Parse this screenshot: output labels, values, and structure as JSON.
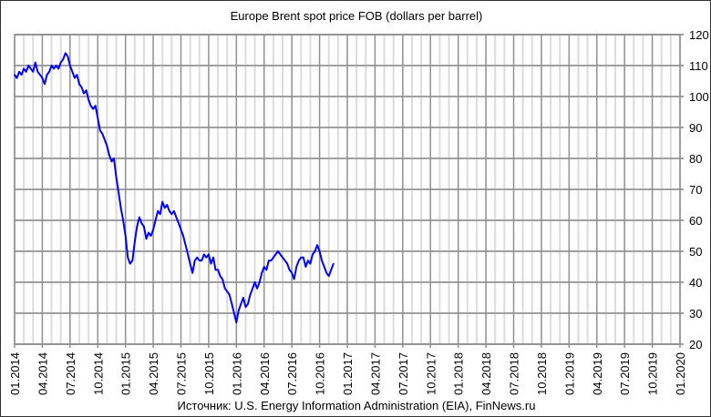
{
  "chart_data": {
    "type": "line",
    "title": "Europe Brent spot price FOB (dollars per barrel)",
    "source": "Источник: U.S. Energy Information Administration (EIA), FinNews.ru",
    "xlabel": "",
    "ylabel": "",
    "x_unit": "months since 01.2014",
    "xlim": [
      0,
      72
    ],
    "ylim": [
      20,
      120
    ],
    "y_ticks": [
      20,
      30,
      40,
      50,
      60,
      70,
      80,
      90,
      100,
      110,
      120
    ],
    "x_tick_labels": [
      "01.2014",
      "04.2014",
      "07.2014",
      "10.2014",
      "01.2015",
      "04.2015",
      "07.2015",
      "10.2015",
      "01.2016",
      "04.2016",
      "07.2016",
      "10.2016",
      "01.2017",
      "04.2017",
      "07.2017",
      "10.2017",
      "01.2018",
      "04.2018",
      "07.2018",
      "10.2018",
      "01.2019",
      "04.2019",
      "07.2019",
      "10.2019",
      "01.2020"
    ],
    "grid": true,
    "y_axis_side": "right",
    "series": [
      {
        "name": "Brent",
        "color": "#0000ff",
        "x": [
          0,
          0.25,
          0.5,
          0.75,
          1,
          1.25,
          1.5,
          1.75,
          2,
          2.25,
          2.5,
          2.75,
          3,
          3.25,
          3.5,
          3.75,
          4,
          4.25,
          4.5,
          4.75,
          5,
          5.25,
          5.5,
          5.75,
          6,
          6.25,
          6.5,
          6.75,
          7,
          7.25,
          7.5,
          7.75,
          8,
          8.25,
          8.5,
          8.75,
          9,
          9.25,
          9.5,
          9.75,
          10,
          10.25,
          10.5,
          10.75,
          11,
          11.25,
          11.5,
          11.75,
          12,
          12.25,
          12.5,
          12.75,
          13,
          13.25,
          13.5,
          13.75,
          14,
          14.25,
          14.5,
          14.75,
          15,
          15.25,
          15.5,
          15.75,
          16,
          16.25,
          16.5,
          16.75,
          17,
          17.25,
          17.5,
          17.75,
          18,
          18.25,
          18.5,
          18.75,
          19,
          19.25,
          19.5,
          19.75,
          20,
          20.25,
          20.5,
          20.75,
          21,
          21.25,
          21.5,
          21.75,
          22,
          22.25,
          22.5,
          22.75,
          23,
          23.25,
          23.5,
          23.75,
          24,
          24.25,
          24.5,
          24.75,
          25,
          25.25,
          25.5,
          25.75,
          26,
          26.25,
          26.5,
          26.75,
          27,
          27.25,
          27.5,
          27.75,
          28,
          28.25,
          28.5,
          28.75,
          29,
          29.25,
          29.5,
          29.75,
          30,
          30.25,
          30.5,
          30.75,
          31,
          31.25,
          31.5,
          31.75,
          32,
          32.25,
          32.5,
          32.75,
          33,
          33.25,
          33.5,
          33.75,
          34,
          34.25,
          34.5
        ],
        "values": [
          107,
          106,
          108,
          107,
          109,
          108,
          110,
          109,
          108,
          111,
          108,
          107,
          106,
          104,
          107,
          108,
          110,
          109,
          110,
          109,
          111,
          112,
          114,
          113,
          110,
          108,
          106,
          107,
          104,
          103,
          101,
          102,
          99,
          97,
          96,
          97,
          93,
          89,
          88,
          86,
          84,
          81,
          79,
          80,
          74,
          69,
          64,
          60,
          55,
          48,
          46,
          47,
          53,
          58,
          61,
          59,
          58,
          54,
          56,
          55,
          57,
          60,
          63,
          62,
          66,
          64,
          65,
          63,
          62,
          63,
          61,
          59,
          57,
          55,
          52,
          49,
          46,
          43,
          47,
          48,
          47,
          47,
          49,
          48,
          49,
          46,
          48,
          44,
          44,
          42,
          41,
          38,
          37,
          36,
          33,
          30,
          27,
          31,
          33,
          35,
          32,
          33,
          36,
          38,
          40,
          38,
          40,
          43,
          45,
          44,
          47,
          47,
          48,
          49,
          50,
          49,
          48,
          47,
          46,
          44,
          43,
          41,
          45,
          47,
          48,
          48,
          45,
          47,
          46,
          49,
          50,
          52,
          50,
          47,
          45,
          43,
          42,
          44,
          46
        ]
      }
    ]
  }
}
